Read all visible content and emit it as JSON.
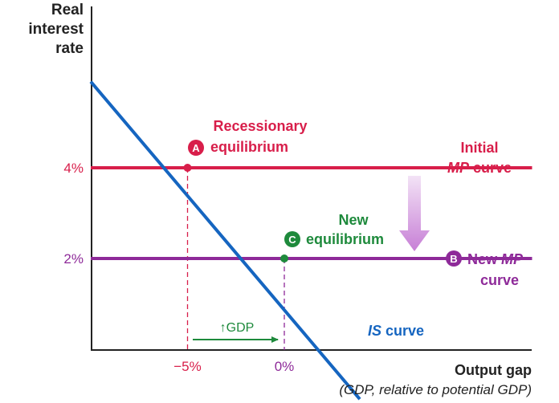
{
  "chart_data": {
    "type": "line",
    "ylabel": [
      "Real",
      "interest",
      "rate"
    ],
    "xlabel": "Output gap",
    "xlabel_sub": "(GDP, relative to potential GDP)",
    "x_ticks": [
      "−5%",
      "0%"
    ],
    "y_ticks": [
      "4%",
      "2%"
    ],
    "series": [
      {
        "key": "is",
        "name": "IS curve",
        "color": "#1565c0",
        "points": [
          [
            -10,
            5.9
          ],
          [
            3.9,
            -1.1
          ]
        ]
      },
      {
        "key": "mp_initial",
        "name": "Initial MP curve",
        "color": "#d81e4a",
        "points": [
          [
            -10,
            4
          ],
          [
            12.8,
            4
          ]
        ]
      },
      {
        "key": "mp_new",
        "name": "New MP curve",
        "color": "#8e2a99",
        "points": [
          [
            -10,
            2
          ],
          [
            12.8,
            2
          ]
        ]
      }
    ],
    "equilibria": [
      {
        "marker": "A",
        "label": [
          "Recessionary",
          "equilibrium"
        ],
        "x": -5,
        "y": 4,
        "color": "#d81e4a"
      },
      {
        "marker": "C",
        "label": [
          "New",
          "equilibrium"
        ],
        "x": 0,
        "y": 2,
        "color": "#1e8a3c"
      }
    ],
    "labels": {
      "initial_mp": [
        "Initial",
        "MP",
        "curve"
      ],
      "new_mp": [
        "New",
        "MP",
        "curve"
      ],
      "marker_b": "B",
      "is_curve": [
        "IS",
        "curve"
      ],
      "gdp_arrow": "↑GDP"
    },
    "colors": {
      "axis": "#222222",
      "red": "#d81e4a",
      "purple": "#8e2a99",
      "blue": "#1565c0",
      "green": "#1e8a3c",
      "shift_arrow": "#c77fd6"
    }
  }
}
